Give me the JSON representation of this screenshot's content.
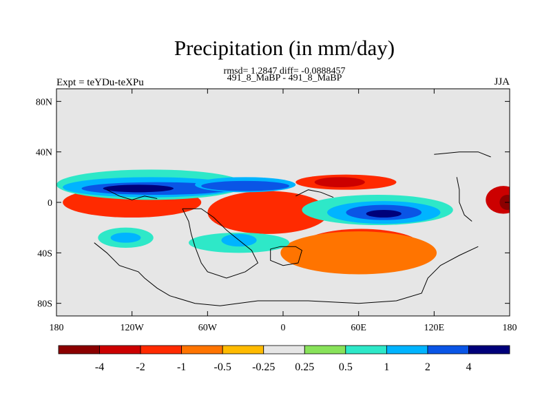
{
  "chart_data": {
    "type": "heatmap",
    "title": "Precipitation (in mm/day)",
    "stats_line": "rmsd= 1.2847 diff= -0.0888457",
    "case_line": "491_8_MaBP - 491_8_MaBP",
    "left_label": "Expt = teYDu-teXPu",
    "right_label": "JJA",
    "x_range": [
      -180,
      180
    ],
    "y_range": [
      -90,
      90
    ],
    "x_ticks": [
      {
        "value": -180,
        "label": "180"
      },
      {
        "value": -120,
        "label": "120W"
      },
      {
        "value": -60,
        "label": "60W"
      },
      {
        "value": 0,
        "label": "0"
      },
      {
        "value": 60,
        "label": "60E"
      },
      {
        "value": 120,
        "label": "120E"
      },
      {
        "value": 180,
        "label": "180"
      }
    ],
    "y_ticks": [
      {
        "value": 80,
        "label": "80N"
      },
      {
        "value": 40,
        "label": "40N"
      },
      {
        "value": 0,
        "label": "0"
      },
      {
        "value": -40,
        "label": "40S"
      },
      {
        "value": -80,
        "label": "80S"
      }
    ],
    "colorbar": {
      "colors": [
        "#8b0000",
        "#cc0000",
        "#ff2a00",
        "#ff7400",
        "#ffbb00",
        "#e6e6e6",
        "#88e25a",
        "#2ee8c8",
        "#00b4ff",
        "#0a55e6",
        "#00007a"
      ],
      "labels": [
        "-4",
        "-2",
        "-1",
        "-0.5",
        "-0.25",
        "0.25",
        "0.5",
        "1",
        "2",
        "4"
      ]
    },
    "features": [
      {
        "name": "westpac-drying-core",
        "level": -5,
        "lon": -125,
        "lat": 0,
        "rx": 34,
        "ry": 6
      },
      {
        "name": "westpac-drying-main",
        "level": -4,
        "lon": -118,
        "lat": 0,
        "rx": 45,
        "ry": 9
      },
      {
        "name": "westpac-drying-edge",
        "level": -3,
        "lon": -120,
        "lat": 0,
        "rx": 55,
        "ry": 12
      },
      {
        "name": "atlantic-drying-core",
        "level": -5,
        "lon": -20,
        "lat": -2,
        "rx": 28,
        "ry": 7
      },
      {
        "name": "atlantic-drying-main",
        "level": -4,
        "lon": -15,
        "lat": -5,
        "rx": 40,
        "ry": 12
      },
      {
        "name": "atlantic-drying-edge",
        "level": -3,
        "lon": -12,
        "lat": -8,
        "rx": 48,
        "ry": 17
      },
      {
        "name": "s-indian-drying",
        "level": -4,
        "lon": 60,
        "lat": -32,
        "rx": 36,
        "ry": 10
      },
      {
        "name": "s-indian-drying-edge",
        "level": -3,
        "lon": 62,
        "lat": -35,
        "rx": 48,
        "ry": 14
      },
      {
        "name": "s-indian-drying-outer",
        "level": -2,
        "lon": 60,
        "lat": -40,
        "rx": 62,
        "ry": 17
      },
      {
        "name": "n-band-drying",
        "level": -3,
        "lon": 50,
        "lat": 16,
        "rx": 40,
        "ry": 6
      },
      {
        "name": "n-band-drying-core",
        "level": -4,
        "lon": 45,
        "lat": 16,
        "rx": 20,
        "ry": 4
      },
      {
        "name": "eastpac-drying",
        "level": -4,
        "lon": 175,
        "lat": 2,
        "rx": 14,
        "ry": 11
      },
      {
        "name": "eastpac-drying-core",
        "level": -5,
        "lon": 178,
        "lat": 0,
        "rx": 6,
        "ry": 6
      },
      {
        "name": "n-pacific-wetting-outer",
        "level": 2,
        "lon": -105,
        "lat": 14,
        "rx": 75,
        "ry": 12
      },
      {
        "name": "n-pacific-wetting",
        "level": 3,
        "lon": -105,
        "lat": 12,
        "rx": 70,
        "ry": 8
      },
      {
        "name": "n-pacific-wetting-core",
        "level": 4,
        "lon": -100,
        "lat": 11,
        "rx": 60,
        "ry": 5
      },
      {
        "name": "n-pacific-wetting-peak",
        "level": 5,
        "lon": -115,
        "lat": 11,
        "rx": 28,
        "ry": 3
      },
      {
        "name": "n-atlantic-wetting",
        "level": 3,
        "lon": -30,
        "lat": 14,
        "rx": 40,
        "ry": 6
      },
      {
        "name": "n-atlantic-wetting-core",
        "level": 4,
        "lon": -30,
        "lat": 13,
        "rx": 35,
        "ry": 4
      },
      {
        "name": "indian-wetting-outer",
        "level": 2,
        "lon": 75,
        "lat": -6,
        "rx": 60,
        "ry": 12
      },
      {
        "name": "indian-wetting",
        "level": 3,
        "lon": 80,
        "lat": -8,
        "rx": 45,
        "ry": 9
      },
      {
        "name": "indian-wetting-core",
        "level": 4,
        "lon": 80,
        "lat": -8,
        "rx": 30,
        "ry": 6
      },
      {
        "name": "indian-wetting-peak",
        "level": 5,
        "lon": 80,
        "lat": -9,
        "rx": 14,
        "ry": 3
      },
      {
        "name": "s-pacific-wetting",
        "level": 2,
        "lon": -125,
        "lat": -28,
        "rx": 22,
        "ry": 8
      },
      {
        "name": "s-pacific-wetting-core",
        "level": 3,
        "lon": -125,
        "lat": -28,
        "rx": 12,
        "ry": 4
      },
      {
        "name": "s-atlantic-wetting",
        "level": 2,
        "lon": -35,
        "lat": -32,
        "rx": 40,
        "ry": 8
      },
      {
        "name": "s-atlantic-wetting-core",
        "level": 3,
        "lon": -35,
        "lat": -30,
        "rx": 14,
        "ry": 5
      }
    ]
  }
}
